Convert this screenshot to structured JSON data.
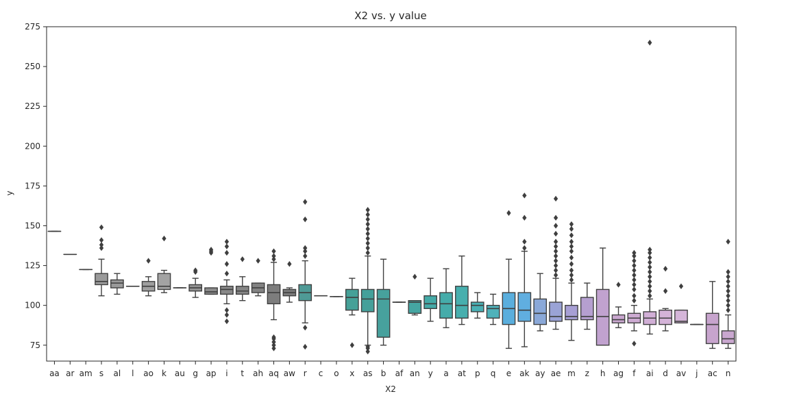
{
  "chart_data": {
    "type": "boxplot",
    "title": "X2 vs. y value",
    "xlabel": "X2",
    "ylabel": "y",
    "ylim": [
      65,
      275
    ],
    "yticks": [
      75,
      100,
      125,
      150,
      175,
      200,
      225,
      250,
      275
    ],
    "grid": false,
    "legend": "none",
    "categories": [
      "aa",
      "ar",
      "am",
      "s",
      "al",
      "l",
      "ao",
      "k",
      "au",
      "g",
      "ap",
      "i",
      "t",
      "ah",
      "aq",
      "aw",
      "r",
      "c",
      "o",
      "x",
      "as",
      "b",
      "af",
      "an",
      "y",
      "a",
      "at",
      "p",
      "q",
      "e",
      "ak",
      "ay",
      "ae",
      "m",
      "z",
      "h",
      "ag",
      "f",
      "ai",
      "d",
      "av",
      "j",
      "ac",
      "n"
    ],
    "boxes": [
      {
        "cat": "aa",
        "lo": 146.5,
        "q1": 146.5,
        "med": 146.5,
        "q3": 146.5,
        "hi": 146.5,
        "out": []
      },
      {
        "cat": "ar",
        "lo": 132,
        "q1": 132,
        "med": 132,
        "q3": 132,
        "hi": 132,
        "out": []
      },
      {
        "cat": "am",
        "lo": 122.5,
        "q1": 122.5,
        "med": 122.5,
        "q3": 122.5,
        "hi": 122.5,
        "out": []
      },
      {
        "cat": "s",
        "lo": 106,
        "q1": 113,
        "med": 115,
        "q3": 120,
        "hi": 129,
        "out": [
          136,
          138,
          141,
          149
        ]
      },
      {
        "cat": "al",
        "lo": 107,
        "q1": 111,
        "med": 114,
        "q3": 116,
        "hi": 120,
        "out": []
      },
      {
        "cat": "l",
        "lo": 112,
        "q1": 112,
        "med": 112,
        "q3": 112,
        "hi": 112,
        "out": []
      },
      {
        "cat": "ao",
        "lo": 106,
        "q1": 109,
        "med": 112,
        "q3": 115,
        "hi": 118,
        "out": [
          128
        ]
      },
      {
        "cat": "k",
        "lo": 108,
        "q1": 110,
        "med": 112,
        "q3": 120,
        "hi": 122,
        "out": [
          142
        ]
      },
      {
        "cat": "au",
        "lo": 111,
        "q1": 111,
        "med": 111,
        "q3": 111,
        "hi": 111,
        "out": []
      },
      {
        "cat": "g",
        "lo": 105,
        "q1": 109,
        "med": 111,
        "q3": 113,
        "hi": 117,
        "out": [
          121,
          122
        ]
      },
      {
        "cat": "ap",
        "lo": 107,
        "q1": 107,
        "med": 108.5,
        "q3": 111,
        "hi": 111,
        "out": [
          133,
          134,
          135
        ]
      },
      {
        "cat": "i",
        "lo": 101,
        "q1": 107,
        "med": 110,
        "q3": 112,
        "hi": 116,
        "out": [
          90,
          94,
          97,
          120,
          126,
          133,
          137,
          140
        ]
      },
      {
        "cat": "t",
        "lo": 103,
        "q1": 107,
        "med": 109,
        "q3": 112,
        "hi": 118,
        "out": [
          129
        ]
      },
      {
        "cat": "ah",
        "lo": 106,
        "q1": 108,
        "med": 111,
        "q3": 114,
        "hi": 114,
        "out": [
          128
        ]
      },
      {
        "cat": "aq",
        "lo": 91,
        "q1": 101,
        "med": 108,
        "q3": 113,
        "hi": 127,
        "out": [
          73,
          75,
          77,
          79,
          80,
          129,
          131,
          134
        ]
      },
      {
        "cat": "aw",
        "lo": 102,
        "q1": 106,
        "med": 108,
        "q3": 110,
        "hi": 111,
        "out": [
          126
        ]
      },
      {
        "cat": "r",
        "lo": 89,
        "q1": 103,
        "med": 108,
        "q3": 113,
        "hi": 128,
        "out": [
          74,
          86,
          131,
          134,
          136,
          154,
          165
        ]
      },
      {
        "cat": "c",
        "lo": 106,
        "q1": 106,
        "med": 106,
        "q3": 106,
        "hi": 106,
        "out": []
      },
      {
        "cat": "o",
        "lo": 105.5,
        "q1": 105.5,
        "med": 105.5,
        "q3": 105.5,
        "hi": 105.5,
        "out": []
      },
      {
        "cat": "x",
        "lo": 94,
        "q1": 97,
        "med": 105,
        "q3": 110,
        "hi": 117,
        "out": [
          75
        ]
      },
      {
        "cat": "as",
        "lo": 75,
        "q1": 96,
        "med": 104,
        "q3": 110,
        "hi": 131,
        "out": [
          71,
          73,
          74,
          133,
          136,
          139,
          142,
          145,
          148,
          151,
          154,
          157,
          160
        ]
      },
      {
        "cat": "b",
        "lo": 75,
        "q1": 80,
        "med": 104,
        "q3": 110,
        "hi": 129,
        "out": []
      },
      {
        "cat": "af",
        "lo": 102,
        "q1": 102,
        "med": 102,
        "q3": 102,
        "hi": 102,
        "out": []
      },
      {
        "cat": "an",
        "lo": 94,
        "q1": 95,
        "med": 102,
        "q3": 103,
        "hi": 103,
        "out": [
          118
        ]
      },
      {
        "cat": "y",
        "lo": 90,
        "q1": 98,
        "med": 101,
        "q3": 106,
        "hi": 117,
        "out": []
      },
      {
        "cat": "a",
        "lo": 86,
        "q1": 92,
        "med": 101,
        "q3": 108,
        "hi": 123,
        "out": []
      },
      {
        "cat": "at",
        "lo": 88,
        "q1": 92,
        "med": 100,
        "q3": 112,
        "hi": 131,
        "out": []
      },
      {
        "cat": "p",
        "lo": 92,
        "q1": 96,
        "med": 100,
        "q3": 102,
        "hi": 108,
        "out": []
      },
      {
        "cat": "q",
        "lo": 88,
        "q1": 92,
        "med": 98,
        "q3": 100,
        "hi": 107,
        "out": []
      },
      {
        "cat": "e",
        "lo": 73,
        "q1": 88,
        "med": 98,
        "q3": 108,
        "hi": 129,
        "out": [
          158
        ]
      },
      {
        "cat": "ak",
        "lo": 74,
        "q1": 90,
        "med": 97,
        "q3": 108,
        "hi": 134,
        "out": [
          136,
          140,
          155,
          169
        ]
      },
      {
        "cat": "ay",
        "lo": 84,
        "q1": 88,
        "med": 95,
        "q3": 104,
        "hi": 120,
        "out": []
      },
      {
        "cat": "ae",
        "lo": 85,
        "q1": 90,
        "med": 93,
        "q3": 102,
        "hi": 117,
        "out": [
          119,
          122,
          125,
          128,
          131,
          134,
          137,
          140,
          145,
          150,
          155,
          167
        ]
      },
      {
        "cat": "m",
        "lo": 78,
        "q1": 91,
        "med": 93,
        "q3": 100,
        "hi": 114,
        "out": [
          116,
          119,
          122,
          126,
          130,
          134,
          137,
          140,
          144,
          148,
          151
        ]
      },
      {
        "cat": "z",
        "lo": 85,
        "q1": 91,
        "med": 93,
        "q3": 105,
        "hi": 114,
        "out": []
      },
      {
        "cat": "h",
        "lo": 75,
        "q1": 75,
        "med": 93,
        "q3": 110,
        "hi": 136,
        "out": []
      },
      {
        "cat": "ag",
        "lo": 86,
        "q1": 89,
        "med": 91,
        "q3": 94,
        "hi": 99,
        "out": [
          113
        ]
      },
      {
        "cat": "f",
        "lo": 84,
        "q1": 89,
        "med": 92,
        "q3": 95,
        "hi": 100,
        "out": [
          76,
          103,
          106,
          110,
          113,
          116,
          119,
          122,
          125,
          128,
          131,
          133
        ]
      },
      {
        "cat": "ai",
        "lo": 82,
        "q1": 88,
        "med": 92,
        "q3": 96,
        "hi": 104,
        "out": [
          106,
          109,
          112,
          115,
          118,
          121,
          124,
          127,
          130,
          133,
          135,
          265
        ]
      },
      {
        "cat": "d",
        "lo": 84,
        "q1": 88,
        "med": 92,
        "q3": 97,
        "hi": 98,
        "out": [
          109,
          123
        ]
      },
      {
        "cat": "av",
        "lo": 89,
        "q1": 89,
        "med": 90,
        "q3": 97,
        "hi": 97,
        "out": [
          112
        ]
      },
      {
        "cat": "j",
        "lo": 88,
        "q1": 88,
        "med": 88,
        "q3": 88,
        "hi": 88,
        "out": []
      },
      {
        "cat": "ac",
        "lo": 73,
        "q1": 76,
        "med": 88,
        "q3": 95,
        "hi": 115,
        "out": []
      },
      {
        "cat": "n",
        "lo": 73,
        "q1": 76,
        "med": 79,
        "q3": 84,
        "hi": 94,
        "out": [
          97,
          100,
          103,
          106,
          109,
          112,
          115,
          118,
          121,
          140
        ]
      }
    ],
    "box_colors": [
      "#8f8f8f",
      "#8f8f8f",
      "#8f8f8f",
      "#9a9a9a",
      "#9a9a9a",
      "#9a9a9a",
      "#9e9e9e",
      "#a3a3a3",
      "#9a9a9a",
      "#929292",
      "#8c8c8c",
      "#898989",
      "#858585",
      "#838383",
      "#7d7d7d",
      "#7a7a7a",
      "#4f9a96",
      "#4f9a96",
      "#4f9a96",
      "#46a198",
      "#44a09a",
      "#47a19d",
      "#48a4a0",
      "#45a6a2",
      "#44aaa7",
      "#45acaa",
      "#47afae",
      "#49b0b4",
      "#4fb2ba",
      "#5aaedd",
      "#60aee0",
      "#8aa8d8",
      "#9aa3d6",
      "#a79fd4",
      "#b59fd0",
      "#c1a2cf",
      "#c9a7cf",
      "#cdabd2",
      "#d1afd6",
      "#d4b3d8",
      "#d5b5d9",
      "#d5b5d9",
      "#c7a4cd",
      "#c9a7cf"
    ]
  }
}
